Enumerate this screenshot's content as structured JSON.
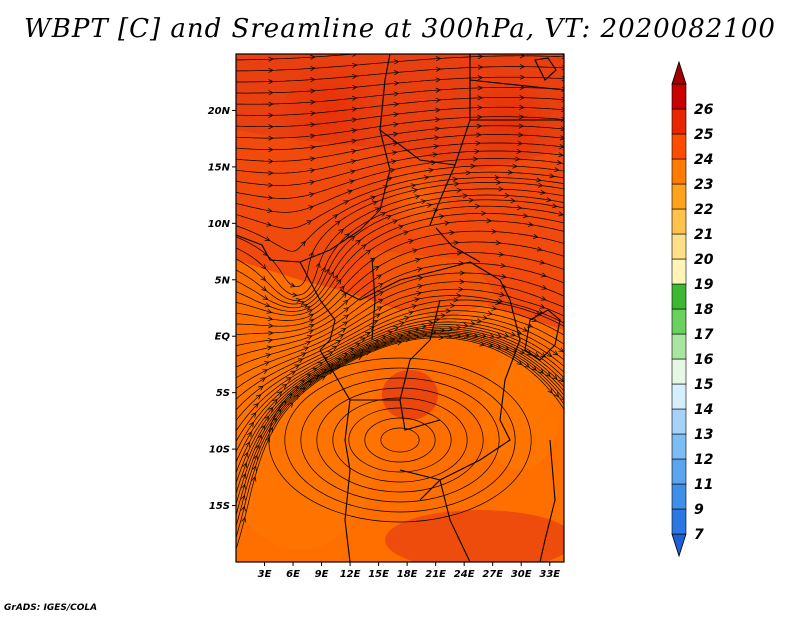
{
  "title": "WBPT [C] and Sreamline at 300hPa, VT: 2020082100",
  "footer": "GrADS: IGES/COLA",
  "map": {
    "lat_labels": [
      "20N",
      "15N",
      "10N",
      "5N",
      "EQ",
      "5S",
      "10S",
      "15S"
    ],
    "lon_labels": [
      "3E",
      "6E",
      "9E",
      "12E",
      "15E",
      "18E",
      "21E",
      "24E",
      "27E",
      "30E",
      "33E"
    ],
    "lat_values": [
      20,
      15,
      10,
      5,
      0,
      -5,
      -10,
      -15
    ],
    "lon_values": [
      3,
      6,
      9,
      12,
      15,
      18,
      21,
      24,
      27,
      30,
      33
    ],
    "extent": {
      "lon_min": 0,
      "lon_max": 34.5,
      "lat_min": -20,
      "lat_max": 25
    }
  },
  "colorbar": {
    "labels": [
      "7",
      "9",
      "11",
      "12",
      "13",
      "14",
      "15",
      "16",
      "17",
      "18",
      "19",
      "20",
      "21",
      "22",
      "23",
      "24",
      "25",
      "26"
    ],
    "colors": [
      "#1f5fd6",
      "#2b78e4",
      "#3f8fea",
      "#5aa5ee",
      "#7dbdf3",
      "#a4d3f7",
      "#d6efff",
      "#e6f7e6",
      "#a8e6a0",
      "#6ad15e",
      "#3cb832",
      "#fff5b8",
      "#ffe08a",
      "#ffc34d",
      "#ffa31a",
      "#ff7a00",
      "#ff4d00",
      "#e82600",
      "#c80000",
      "#a00000"
    ]
  }
}
